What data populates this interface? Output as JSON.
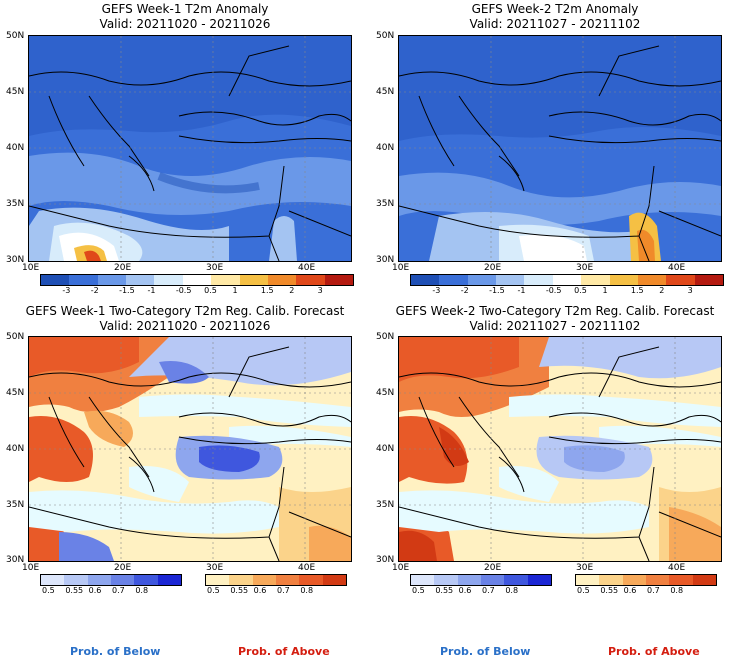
{
  "panels": [
    {
      "title1": "GEFS Week-1 T2m Anomaly",
      "title2": "Valid: 20211020 - 20211026"
    },
    {
      "title1": "GEFS Week-2 T2m Anomaly",
      "title2": "Valid: 20211027 - 20211102"
    },
    {
      "title1": "GEFS Week-1 Two-Category T2m Reg. Calib. Forecast",
      "title2": "Valid: 20211020 - 20211026"
    },
    {
      "title1": "GEFS Week-2 Two-Category T2m Reg. Calib. Forecast",
      "title2": "Valid: 20211027 - 20211102"
    }
  ],
  "lat_labels": [
    "50N",
    "45N",
    "40N",
    "35N",
    "30N"
  ],
  "lon_labels": [
    "10E",
    "20E",
    "30E",
    "40E"
  ],
  "anomaly_colorbar": {
    "labels": [
      "-3",
      "-2",
      "-1.5",
      "-1",
      "-0.5",
      "0.5",
      "1",
      "1.5",
      "2",
      "3"
    ],
    "colors": [
      "#1e4fb5",
      "#3a6fd8",
      "#6a98e8",
      "#a4c4f2",
      "#d8ecfb",
      "#ffffff",
      "#ffe9a6",
      "#f5c044",
      "#f08a2a",
      "#e0481a",
      "#b41a10"
    ]
  },
  "below_colorbar": {
    "labels": [
      "0.5",
      "0.55",
      "0.6",
      "0.7",
      "0.8"
    ],
    "colors": [
      "#dde6fb",
      "#b7c8f5",
      "#8ea6ee",
      "#6a82e6",
      "#3f57de",
      "#1b27d4"
    ]
  },
  "above_colorbar": {
    "labels": [
      "0.5",
      "0.55",
      "0.6",
      "0.7",
      "0.8"
    ],
    "colors": [
      "#fff1c2",
      "#fbd38a",
      "#f7a95a",
      "#f08040",
      "#e85a28",
      "#d23a14"
    ]
  },
  "legend": {
    "below": "Prob. of Below",
    "above": "Prob. of Above",
    "below_color": "#2a70c8",
    "above_color": "#d41e10"
  }
}
